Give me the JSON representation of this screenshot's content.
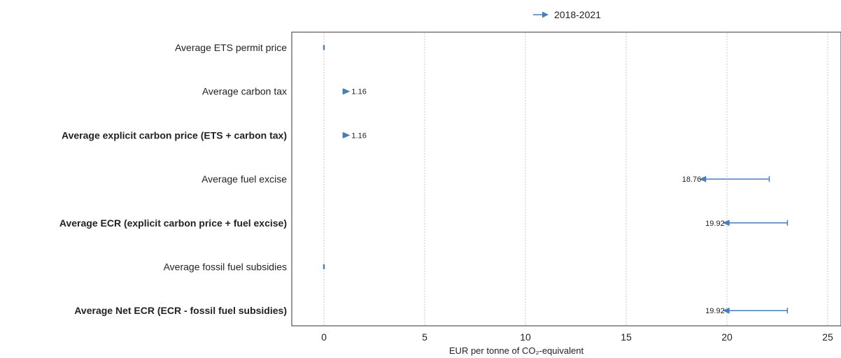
{
  "chart_data": {
    "type": "dot-arrow",
    "title": "",
    "xlabel": "EUR per tonne of CO₂-equivalent",
    "ylabel": "",
    "xlim": [
      0,
      25
    ],
    "xticks": [
      "0",
      "5",
      "10",
      "15",
      "20",
      "25"
    ],
    "grid": "vertical dotted",
    "legend": {
      "position": "top-center",
      "label": "2018-2021"
    },
    "color": "#4a7ebb",
    "categories": [
      {
        "label": "Average ETS permit price",
        "bold": false,
        "start": 0,
        "end": 0,
        "value_label": ""
      },
      {
        "label": "Average carbon tax",
        "bold": false,
        "start": 0.95,
        "end": 1.16,
        "value_label": "1.16"
      },
      {
        "label": "Average explicit carbon price (ETS + carbon tax)",
        "bold": true,
        "start": 0.95,
        "end": 1.16,
        "value_label": "1.16"
      },
      {
        "label": "Average fuel excise",
        "bold": false,
        "start": 22.1,
        "end": 18.76,
        "value_label": "18.76"
      },
      {
        "label": "Average ECR (explicit carbon price + fuel excise)",
        "bold": true,
        "start": 23.0,
        "end": 19.92,
        "value_label": "19.92"
      },
      {
        "label": "Average fossil fuel subsidies",
        "bold": false,
        "start": 0,
        "end": 0,
        "value_label": ""
      },
      {
        "label": "Average Net ECR (ECR - fossil fuel subsidies)",
        "bold": true,
        "start": 23.0,
        "end": 19.92,
        "value_label": "19.92"
      }
    ]
  }
}
